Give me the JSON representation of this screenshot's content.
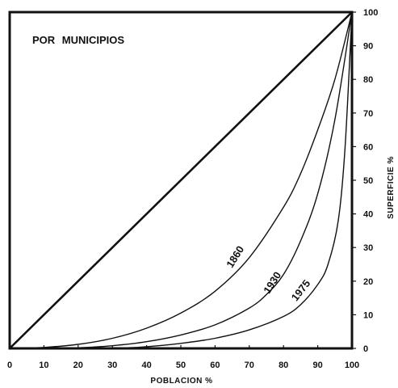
{
  "chart_data": {
    "type": "line",
    "title": "POR MUNICIPIOS",
    "xlabel": "POBLACION %",
    "ylabel": "SUPERFICIE %",
    "xlim": [
      0,
      100
    ],
    "ylim": [
      0,
      100
    ],
    "x_ticks": [
      "0",
      "10",
      "20",
      "30",
      "40",
      "50",
      "60",
      "70",
      "80",
      "90",
      "100"
    ],
    "y_ticks": [
      "0",
      "10",
      "20",
      "30",
      "40",
      "50",
      "60",
      "70",
      "80",
      "90",
      "100"
    ],
    "grid": false,
    "series": [
      {
        "name": "",
        "x": [
          0,
          100
        ],
        "y": [
          0,
          100
        ]
      },
      {
        "name": "1860",
        "x": [
          0,
          10,
          20,
          30,
          40,
          50,
          60,
          70,
          80,
          85,
          90,
          95,
          100
        ],
        "y": [
          0,
          0.3,
          1.2,
          3,
          6,
          10.5,
          17,
          27,
          42,
          52,
          65,
          80,
          100
        ]
      },
      {
        "name": "1930",
        "x": [
          0,
          20,
          30,
          40,
          50,
          60,
          70,
          75,
          80,
          85,
          90,
          95,
          100
        ],
        "y": [
          0,
          0.2,
          0.8,
          2,
          4,
          7,
          12,
          16,
          22,
          32,
          46,
          68,
          100
        ]
      },
      {
        "name": "1975",
        "x": [
          0,
          30,
          40,
          50,
          60,
          70,
          80,
          85,
          90,
          93,
          96,
          98,
          100
        ],
        "y": [
          0,
          0.1,
          0.5,
          1.5,
          3,
          5.5,
          9.5,
          13,
          19,
          25,
          38,
          60,
          100
        ]
      }
    ]
  }
}
